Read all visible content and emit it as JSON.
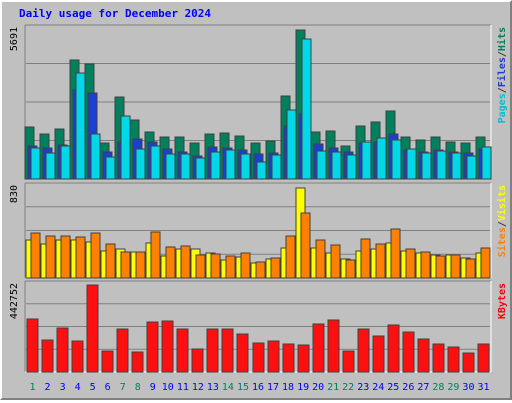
{
  "chart_data": [
    {
      "type": "bar",
      "title": "Daily usage for December 2024",
      "colors": {
        "background": "#c0c0c0",
        "title": "#0000ff",
        "weekend_day": "#00805c",
        "weekday": "#0000ff"
      },
      "categories": [
        "1",
        "2",
        "3",
        "4",
        "5",
        "6",
        "7",
        "8",
        "9",
        "10",
        "11",
        "12",
        "13",
        "14",
        "15",
        "16",
        "17",
        "18",
        "19",
        "20",
        "21",
        "22",
        "23",
        "24",
        "25",
        "26",
        "27",
        "28",
        "29",
        "30",
        "31"
      ],
      "weekend_days": [
        1,
        7,
        8,
        14,
        15,
        21,
        22,
        28,
        29
      ],
      "panels": [
        {
          "axis_max_label": "5691",
          "ylim": [
            0,
            5691
          ],
          "legend": [
            {
              "text": "Pages",
              "color": "#00c0d0"
            },
            {
              "text": "/",
              "color": "#404040"
            },
            {
              "text": "Files",
              "color": "#1a40d0"
            },
            {
              "text": "/",
              "color": "#404040"
            },
            {
              "text": "Hits",
              "color": "#00805c"
            }
          ],
          "series": [
            {
              "name": "Hits",
              "color": "#00805c",
              "values": [
                1990,
                1710,
                1880,
                4520,
                4360,
                1380,
                3110,
                2230,
                1790,
                1590,
                1590,
                1350,
                1710,
                1760,
                1650,
                1380,
                1450,
                3150,
                5650,
                1800,
                1810,
                1260,
                2020,
                2180,
                2570,
                1590,
                1490,
                1600,
                1400,
                1370,
                1590
              ]
            },
            {
              "name": "Files",
              "color": "#1a40d0",
              "values": [
                1270,
                1190,
                1300,
                3380,
                3270,
                1020,
                1410,
                1530,
                1400,
                1130,
                1040,
                880,
                1220,
                1180,
                1090,
                960,
                1000,
                2020,
                2450,
                1320,
                1160,
                1010,
                1360,
                1400,
                1690,
                1100,
                1030,
                1110,
                1020,
                990,
                1130
              ]
            },
            {
              "name": "Pages",
              "color": "#00d8e8",
              "values": [
                1170,
                970,
                1250,
                4020,
                1720,
                820,
                2390,
                1150,
                1240,
                930,
                950,
                780,
                1040,
                1100,
                960,
                650,
                900,
                2620,
                5330,
                1080,
                1020,
                900,
                1410,
                1550,
                1490,
                1120,
                1000,
                1050,
                970,
                890,
                1210
              ]
            }
          ]
        },
        {
          "axis_max_label": "830",
          "ylim": [
            0,
            830
          ],
          "legend": [
            {
              "text": "Sites",
              "color": "#ff8000"
            },
            {
              "text": "/",
              "color": "#404040"
            },
            {
              "text": "Visits",
              "color": "#ffff00"
            }
          ],
          "series": [
            {
              "name": "Visits",
              "color": "#ffff00",
              "values": [
                350,
                310,
                350,
                350,
                330,
                250,
                260,
                240,
                320,
                200,
                260,
                260,
                230,
                160,
                190,
                140,
                170,
                270,
                820,
                270,
                230,
                170,
                250,
                260,
                320,
                250,
                230,
                210,
                210,
                180,
                230
              ]
            },
            {
              "name": "Sites",
              "color": "#ff8000",
              "values": [
                410,
                380,
                380,
                370,
                410,
                310,
                240,
                240,
                420,
                280,
                290,
                210,
                220,
                200,
                230,
                150,
                180,
                380,
                590,
                350,
                300,
                160,
                360,
                310,
                450,
                260,
                240,
                200,
                210,
                170,
                270
              ]
            }
          ]
        },
        {
          "axis_max_label": "442752",
          "ylim": [
            0,
            442752
          ],
          "legend": [
            {
              "text": "KBytes",
              "color": "#ff0000"
            }
          ],
          "series": [
            {
              "name": "KBytes",
              "color": "#ff1010",
              "values": [
                268000,
                163000,
                225000,
                160000,
                442752,
                107000,
                219000,
                100000,
                252000,
                257000,
                218000,
                116000,
                218000,
                218000,
                192000,
                150000,
                158000,
                141000,
                136000,
                245000,
                264000,
                108000,
                218000,
                185000,
                241000,
                204000,
                168000,
                140000,
                126000,
                95000,
                143000
              ]
            }
          ]
        }
      ]
    }
  ]
}
